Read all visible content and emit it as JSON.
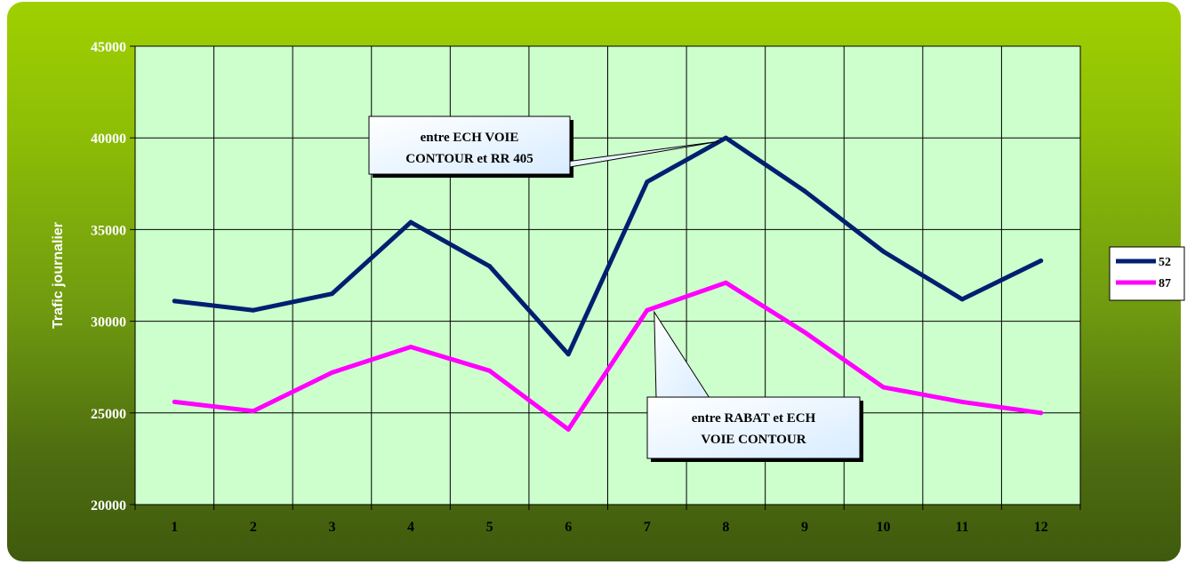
{
  "chart_data": {
    "type": "line",
    "title": "",
    "xlabel": "",
    "ylabel": "Trafic journalier",
    "categories": [
      "1",
      "2",
      "3",
      "4",
      "5",
      "6",
      "7",
      "8",
      "9",
      "10",
      "11",
      "12"
    ],
    "ylim": [
      20000,
      45000
    ],
    "yticks": [
      "20000",
      "25000",
      "30000",
      "35000",
      "40000",
      "45000"
    ],
    "grid": true,
    "legend_position": "right",
    "series": [
      {
        "name": "52",
        "color": "#001f70",
        "values": [
          31100,
          30600,
          31500,
          35400,
          33000,
          28200,
          37600,
          40000,
          37100,
          33800,
          31200,
          33300
        ]
      },
      {
        "name": "87",
        "color": "#ff00ff",
        "values": [
          25600,
          25100,
          27200,
          28600,
          27300,
          24100,
          30600,
          32100,
          29400,
          26400,
          25600,
          25000
        ]
      }
    ],
    "annotations": [
      {
        "lines": [
          "entre ECH VOIE",
          "CONTOUR et RR 405"
        ],
        "target_series": 0,
        "target_x": 7
      },
      {
        "lines": [
          "entre RABAT  et ECH",
          "VOIE CONTOUR"
        ],
        "target_series": 1,
        "target_x": 6
      }
    ]
  },
  "colors": {
    "plot_bg": "#ccffcc",
    "grid": "#000000",
    "callout_bg": "#e8f3ff"
  }
}
